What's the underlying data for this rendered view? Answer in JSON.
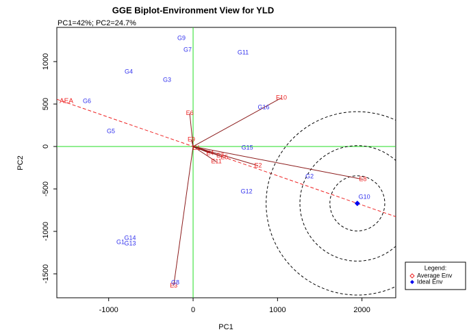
{
  "chart_data": {
    "type": "biplot",
    "title": "GGE Biplot-Environment View for YLD",
    "subtitle": "PC1=42%; PC2=24.7%",
    "x_label": "PC1",
    "y_label": "PC2",
    "xlim": [
      -1614,
      2400
    ],
    "ylim": [
      -1782,
      1403
    ],
    "xticks": [
      -1000,
      0,
      1000,
      2000
    ],
    "yticks": [
      -1500,
      -1000,
      -500,
      0,
      500,
      1000
    ],
    "genotypes": {
      "color": "#3333ee",
      "labels": [
        "G9",
        "G7",
        "G11",
        "G4",
        "G3",
        "G6",
        "G5",
        "G16",
        "G15",
        "G2",
        "G12",
        "G10",
        "G14",
        "G1",
        "G13",
        "G8"
      ],
      "x": [
        -138,
        -65,
        592,
        -762,
        -308,
        -1257,
        -973,
        835,
        641,
        1379,
        633,
        2028,
        -746,
        -860,
        -746,
        -211
      ],
      "y": [
        1274,
        1137,
        1105,
        879,
        782,
        532,
        177,
        460,
        -16,
        -355,
        -532,
        -597,
        -1081,
        -1129,
        -1145,
        -1605
      ]
    },
    "environments": {
      "color": "#ee2222",
      "line_color": "#8b1a1a",
      "labels": [
        "E10",
        "E6",
        "E8",
        "E2",
        "E11",
        "E3",
        "E9",
        "E1",
        "E4",
        "E7",
        "E5"
      ],
      "x": [
        1046,
        -40,
        2011,
        770,
        276,
        -230,
        -20,
        40,
        200,
        320,
        370
      ],
      "y": [
        573,
        390,
        -387,
        -226,
        -180,
        -1640,
        80,
        -20,
        -80,
        -110,
        -130
      ]
    },
    "aea_label": "AEA",
    "ideal": {
      "x": 1945,
      "y": -670,
      "color": "#0000ee"
    },
    "circle_radii": [
      325,
      680,
      1080
    ],
    "legend": {
      "title": "Legend:",
      "entries": [
        "Average Env",
        "Ideal Env"
      ]
    }
  }
}
